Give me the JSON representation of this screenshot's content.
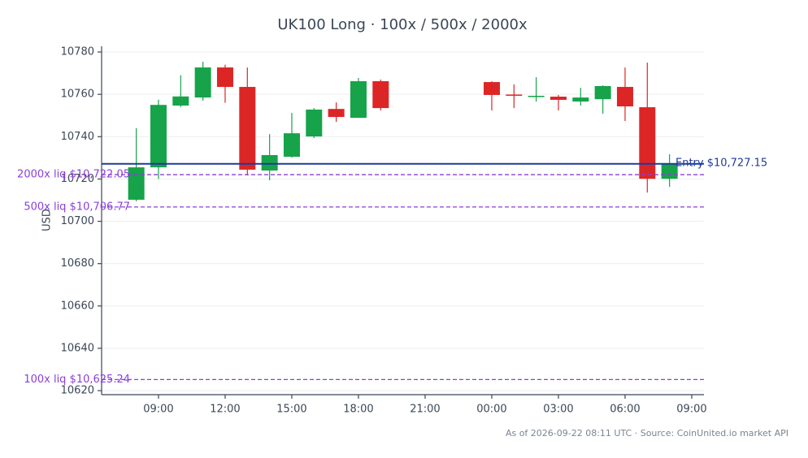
{
  "chart_data": {
    "type": "candlestick",
    "title": "UK100 Long · 100x / 500x / 2000x",
    "y_label": "USD",
    "footnote": "As of 2026-09-22 08:11 UTC · Source: CoinUnited.io market API",
    "x": [
      8,
      9,
      10,
      11,
      12,
      13,
      14,
      15,
      16,
      17,
      18,
      19,
      24,
      25,
      26,
      27,
      28,
      29,
      30,
      31,
      32
    ],
    "open": [
      10710.2,
      10725.5,
      10754.7,
      10758.5,
      10772.7,
      10763.5,
      10724,
      10730.5,
      10740.1,
      10753.1,
      10748.9,
      10766.2,
      10765.8,
      10759.9,
      10759,
      10758.9,
      10756.6,
      10757.7,
      10763.5,
      10753.9,
      10720.1
    ],
    "high": [
      10744,
      10757.5,
      10769,
      10775.4,
      10774,
      10772.7,
      10741.2,
      10751.2,
      10753.5,
      10756.2,
      10767.7,
      10767,
      10766.2,
      10764.7,
      10768.1,
      10759.7,
      10763.1,
      10764.3,
      10772.7,
      10775,
      10731.7
    ],
    "low": [
      10709.5,
      10720,
      10754,
      10757,
      10756,
      10721.7,
      10719.4,
      10730.1,
      10739.3,
      10747,
      10748.9,
      10752.4,
      10752.4,
      10753.5,
      10756.6,
      10752.4,
      10754.7,
      10750.8,
      10747.4,
      10713.6,
      10716.3
    ],
    "close": [
      10725.5,
      10755,
      10759,
      10772.7,
      10763.5,
      10724.4,
      10731.3,
      10741.6,
      10752.8,
      10749.3,
      10766.2,
      10753.5,
      10759.7,
      10759.6,
      10759.3,
      10757.4,
      10758.5,
      10763.9,
      10754.3,
      10720.1,
      10727.4
    ],
    "up_color": "#16a34a",
    "down_color": "#dc2626",
    "xlim": [
      6.44,
      33.55
    ],
    "xticks": [
      {
        "value": 9,
        "label": "09:00"
      },
      {
        "value": 12,
        "label": "12:00"
      },
      {
        "value": 15,
        "label": "15:00"
      },
      {
        "value": 18,
        "label": "18:00"
      },
      {
        "value": 21,
        "label": "21:00"
      },
      {
        "value": 24,
        "label": "00:00"
      },
      {
        "value": 27,
        "label": "03:00"
      },
      {
        "value": 30,
        "label": "06:00"
      },
      {
        "value": 33,
        "label": "09:00"
      }
    ],
    "ylim": [
      10618.1,
      10782.7
    ],
    "yticks": [
      10620,
      10640,
      10660,
      10680,
      10700,
      10720,
      10740,
      10760,
      10780
    ],
    "grid": true,
    "hlines": [
      {
        "label": "Entry $10,727.15",
        "value": 10727.15,
        "color": "#1e3a9a",
        "style": "solid",
        "label_side": "right"
      },
      {
        "label": "2000x liq $10,722.05",
        "value": 10722.05,
        "color": "#8b3fd9",
        "style": "dashed",
        "label_side": "left"
      },
      {
        "label": "500x liq $10,706.77",
        "value": 10706.77,
        "color": "#8b3fd9",
        "style": "dashed",
        "label_side": "left"
      },
      {
        "label": "100x liq $10,625.24",
        "value": 10625.24,
        "color": "#8b3fd9",
        "style": "dashed",
        "label_side": "left"
      }
    ]
  }
}
